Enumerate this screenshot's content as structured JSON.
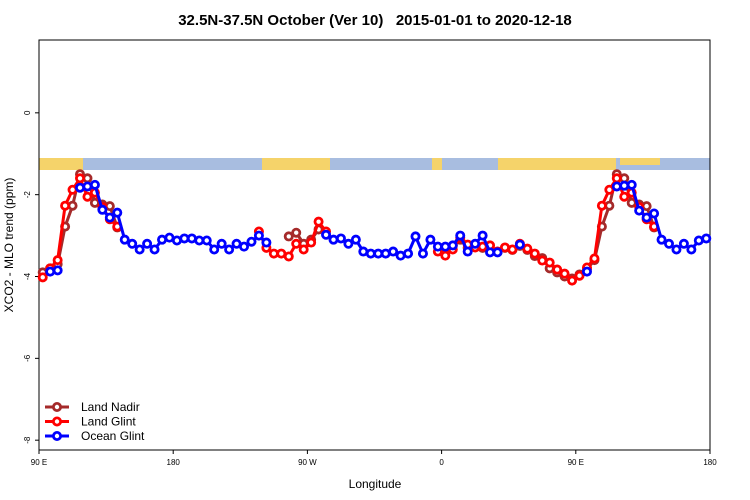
{
  "chart_data": {
    "type": "line",
    "title": "32.5N-37.5N October (Ver 10)   2015-01-01 to 2020-12-18",
    "x_label": "Longitude",
    "y_label": "XCO2 - MLO trend (ppm)",
    "x": [
      92.5,
      97.5,
      102.5,
      107.5,
      112.5,
      117.5,
      122.5,
      127.5,
      132.5,
      137.5,
      142.5,
      147.5,
      152.5,
      157.5,
      162.5,
      167.5,
      172.5,
      177.5,
      182.5,
      187.5,
      192.5,
      197.5,
      202.5,
      207.5,
      212.5,
      217.5,
      222.5,
      227.5,
      232.5,
      237.5,
      242.5,
      247.5,
      252.5,
      257.5,
      262.5,
      267.5,
      272.5,
      277.5,
      282.5,
      287.5,
      292.5,
      297.5,
      302.5,
      307.5,
      312.5,
      317.5,
      322.5,
      327.5,
      332.5,
      337.5,
      342.5,
      347.5,
      352.5,
      357.5,
      362.5,
      367.5,
      372.5,
      377.5,
      382.5,
      387.5,
      392.5,
      397.5,
      402.5,
      407.5,
      412.5,
      417.5,
      422.5,
      427.5,
      432.5,
      437.5,
      442.5,
      447.5,
      452.5,
      457.5,
      462.5,
      467.5,
      472.5,
      477.5,
      482.5,
      487.5,
      492.5,
      497.5,
      502.5,
      507.5,
      512.5,
      517.5,
      522.5,
      527.5,
      532.5,
      537.5
    ],
    "xlim": [
      90,
      540
    ],
    "xticks": [
      {
        "value": 90,
        "label": "90 E"
      },
      {
        "value": 180,
        "label": "180"
      },
      {
        "value": 270,
        "label": "90 W"
      },
      {
        "value": 360,
        "label": "0"
      },
      {
        "value": 450,
        "label": "90 E"
      },
      {
        "value": 540,
        "label": "180"
      }
    ],
    "ylim": [
      -8.24,
      1.78
    ],
    "yticks": [
      0,
      -2,
      -4,
      -6,
      -8
    ],
    "legend": "bottom-left",
    "series": [
      {
        "name": "Land Nadir",
        "color": "#a52a2a",
        "values": [
          -3.9,
          -3.8,
          -3.7,
          -2.78,
          -2.27,
          -1.5,
          -1.6,
          -2.2,
          -2.24,
          -2.28,
          -2.8,
          null,
          null,
          null,
          null,
          null,
          null,
          null,
          null,
          null,
          null,
          null,
          null,
          null,
          null,
          null,
          null,
          null,
          null,
          null,
          null,
          null,
          null,
          -3.02,
          -2.93,
          -3.2,
          -3.1,
          -2.85,
          null,
          null,
          null,
          null,
          null,
          null,
          null,
          null,
          null,
          null,
          null,
          null,
          null,
          null,
          null,
          null,
          -3.3,
          -3.25,
          -3.1,
          -3.3,
          -3.25,
          -3.3,
          -3.35,
          -3.4,
          -3.3,
          -3.35,
          -3.25,
          -3.35,
          -3.5,
          -3.55,
          -3.8,
          -3.9,
          -4.0,
          -4.05,
          -3.95,
          -3.82,
          -3.6,
          -2.78,
          -2.27,
          -1.5,
          -1.6,
          -2.2,
          -2.24,
          -2.28,
          -2.8,
          null,
          null,
          null,
          null,
          null,
          null,
          null
        ]
      },
      {
        "name": "Land Glint",
        "color": "#ff0000",
        "values": [
          -4.02,
          -3.8,
          -3.6,
          -2.27,
          -1.88,
          -1.6,
          -2.05,
          -1.95,
          -2.3,
          -2.6,
          -2.78,
          null,
          null,
          null,
          null,
          null,
          null,
          null,
          null,
          null,
          null,
          null,
          null,
          null,
          null,
          null,
          null,
          null,
          null,
          -2.9,
          -3.3,
          -3.44,
          -3.44,
          -3.51,
          -3.2,
          -3.34,
          -3.17,
          -2.66,
          -2.9,
          null,
          null,
          null,
          null,
          null,
          null,
          null,
          null,
          null,
          null,
          null,
          null,
          null,
          null,
          -3.39,
          -3.49,
          -3.34,
          -3.05,
          -3.22,
          -3.29,
          -3.27,
          -3.24,
          -3.39,
          -3.29,
          -3.34,
          -3.2,
          -3.32,
          -3.44,
          -3.61,
          -3.66,
          -3.83,
          -3.93,
          -4.1,
          -3.98,
          -3.78,
          -3.56,
          -2.27,
          -1.88,
          -1.6,
          -2.05,
          -1.95,
          -2.3,
          -2.6,
          -2.78,
          null,
          null,
          null,
          null,
          null,
          null,
          null
        ]
      },
      {
        "name": "Ocean Glint",
        "color": "#0000ff",
        "values": [
          null,
          -3.88,
          -3.85,
          null,
          null,
          -1.83,
          -1.8,
          -1.76,
          -2.37,
          -2.56,
          -2.44,
          -3.1,
          -3.2,
          -3.34,
          -3.2,
          -3.34,
          -3.1,
          -3.05,
          -3.12,
          -3.07,
          -3.07,
          -3.12,
          -3.12,
          -3.34,
          -3.2,
          -3.34,
          -3.2,
          -3.27,
          -3.15,
          -3.0,
          -3.17,
          null,
          null,
          null,
          null,
          null,
          null,
          null,
          -2.98,
          -3.1,
          -3.07,
          -3.2,
          -3.1,
          -3.39,
          -3.44,
          -3.44,
          -3.44,
          -3.39,
          -3.49,
          -3.44,
          -3.02,
          -3.44,
          -3.1,
          -3.27,
          -3.27,
          -3.24,
          -3.0,
          -3.39,
          -3.2,
          -3.0,
          -3.41,
          -3.41,
          null,
          null,
          -3.22,
          null,
          null,
          null,
          null,
          null,
          null,
          null,
          null,
          -3.88,
          null,
          null,
          null,
          -1.8,
          -1.78,
          -1.76,
          -2.39,
          -2.56,
          -2.46,
          -3.1,
          -3.2,
          -3.34,
          -3.2,
          -3.34,
          -3.12,
          -3.07
        ]
      }
    ]
  }
}
